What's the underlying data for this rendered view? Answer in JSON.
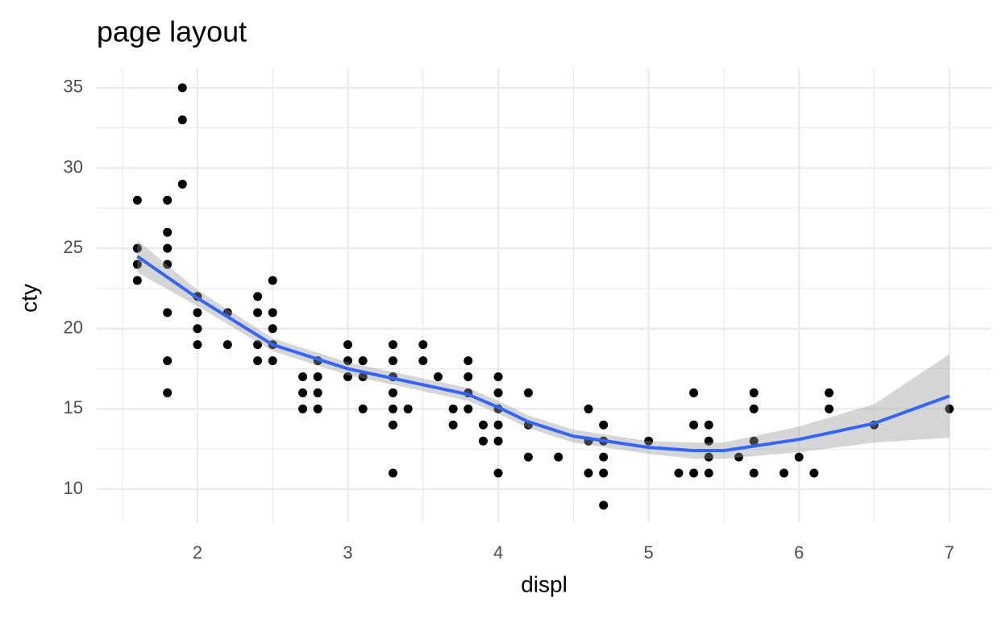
{
  "chart_data": {
    "type": "scatter",
    "title": "page layout",
    "x_label": "displ",
    "y_label": "cty",
    "xlim": [
      1.33,
      7.28
    ],
    "ylim": [
      7.94,
      36.2
    ],
    "xticks": [
      2,
      3,
      4,
      5,
      6,
      7
    ],
    "yticks": [
      10,
      15,
      20,
      25,
      30,
      35
    ],
    "xminorticks": [
      1.5,
      2.5,
      3.5,
      4.5,
      5.5,
      6.5
    ],
    "yminorticks": [
      12.5,
      17.5,
      22.5,
      27.5,
      32.5
    ],
    "grid": true,
    "series": [
      {
        "type": "scatter",
        "color": "#000000",
        "x": [
          1.6,
          1.6,
          1.6,
          1.6,
          1.8,
          1.8,
          1.8,
          1.8,
          1.8,
          1.8,
          1.8,
          1.9,
          1.9,
          1.9,
          2.0,
          2.0,
          2.0,
          2.0,
          2.2,
          2.2,
          2.4,
          2.4,
          2.4,
          2.4,
          2.5,
          2.5,
          2.5,
          2.5,
          2.5,
          2.7,
          2.7,
          2.7,
          2.8,
          2.8,
          2.8,
          2.8,
          3.0,
          3.0,
          3.0,
          3.1,
          3.1,
          3.1,
          3.3,
          3.3,
          3.3,
          3.3,
          3.3,
          3.3,
          3.3,
          3.4,
          3.5,
          3.5,
          3.6,
          3.7,
          3.7,
          3.8,
          3.8,
          3.8,
          3.8,
          3.9,
          3.9,
          4.0,
          4.0,
          4.0,
          4.0,
          4.0,
          4.0,
          4.2,
          4.2,
          4.2,
          4.4,
          4.6,
          4.6,
          4.6,
          4.7,
          4.7,
          4.7,
          4.7,
          4.7,
          5.0,
          5.2,
          5.3,
          5.3,
          5.3,
          5.4,
          5.4,
          5.4,
          5.4,
          5.6,
          5.7,
          5.7,
          5.7,
          5.7,
          5.9,
          6.0,
          6.1,
          6.2,
          6.2,
          6.5,
          7.0
        ],
        "values": [
          28,
          25,
          24,
          23,
          28,
          26,
          25,
          24,
          21,
          18,
          16,
          35,
          33,
          29,
          22,
          21,
          20,
          19,
          21,
          19,
          22,
          21,
          19,
          18,
          23,
          21,
          20,
          19,
          18,
          17,
          16,
          15,
          18,
          17,
          16,
          15,
          19,
          18,
          17,
          18,
          17,
          15,
          19,
          18,
          17,
          16,
          15,
          14,
          11,
          15,
          19,
          18,
          17,
          15,
          14,
          18,
          17,
          16,
          15,
          14,
          13,
          17,
          16,
          15,
          14,
          13,
          11,
          16,
          14,
          12,
          12,
          15,
          13,
          11,
          14,
          13,
          12,
          11,
          9,
          13,
          11,
          16,
          14,
          11,
          14,
          13,
          12,
          11,
          12,
          16,
          15,
          13,
          11,
          11,
          12,
          11,
          16,
          15,
          14,
          15
        ]
      },
      {
        "type": "smooth",
        "color": "#3366FF",
        "band_color": "#999999",
        "x": [
          1.6,
          2.0,
          2.5,
          3.0,
          3.5,
          3.8,
          4.0,
          4.2,
          4.5,
          5.0,
          5.3,
          5.5,
          6.0,
          6.5,
          7.0
        ],
        "values": [
          24.5,
          21.9,
          19.0,
          17.5,
          16.5,
          15.9,
          15.1,
          14.2,
          13.3,
          12.6,
          12.4,
          12.4,
          13.1,
          14.1,
          15.8
        ],
        "lower": [
          23.5,
          21.4,
          18.6,
          17.1,
          16.1,
          15.5,
          14.7,
          13.8,
          12.9,
          12.2,
          11.9,
          11.9,
          12.3,
          12.9,
          13.2
        ],
        "upper": [
          25.5,
          22.4,
          19.4,
          17.9,
          16.9,
          16.3,
          15.5,
          14.6,
          13.7,
          13.0,
          12.9,
          12.9,
          13.9,
          15.3,
          18.4
        ]
      }
    ]
  }
}
